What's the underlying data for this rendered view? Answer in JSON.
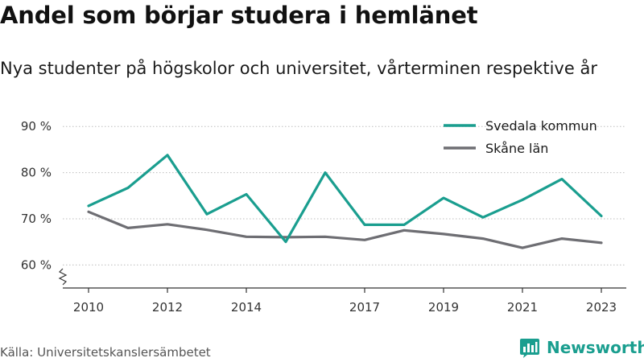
{
  "header": {
    "title": "Andel som börjar studera i hemlänet",
    "subtitle": "Nya studenter på högskolor och universitet, vårterminen respektive år"
  },
  "footer": {
    "source": "Källa: Universitetskanslersämbetet",
    "brand": "Newsworthy",
    "brand_icon": "bar-chart-logo-icon",
    "brand_color": "#1a9e8f"
  },
  "chart_data": {
    "type": "line",
    "title": "Andel som börjar studera i hemlänet",
    "subtitle": "Nya studenter på högskolor och universitet, vårterminen respektive år",
    "xlabel": "",
    "ylabel": "",
    "x": [
      2010,
      2011,
      2012,
      2013,
      2014,
      2015,
      2016,
      2017,
      2018,
      2019,
      2020,
      2021,
      2022,
      2023
    ],
    "x_tick_values": [
      2010,
      2012,
      2014,
      2017,
      2019,
      2021,
      2023
    ],
    "x_tick_labels": [
      "2010",
      "2012",
      "2014",
      "2017",
      "2019",
      "2021",
      "2023"
    ],
    "y_ticks": [
      60,
      70,
      80,
      90
    ],
    "y_tick_labels": [
      "60 %",
      "70 %",
      "80 %",
      "90 %"
    ],
    "ylim": [
      55,
      93
    ],
    "xlim": [
      2009.7,
      2023.3
    ],
    "y_axis_break": true,
    "grid": "horizontal-dotted",
    "legend_position": "top-right",
    "series": [
      {
        "name": "Svedala kommun",
        "color": "#1a9e8f",
        "values": [
          72.8,
          76.7,
          83.8,
          71.0,
          75.3,
          65.0,
          80.0,
          68.7,
          68.7,
          74.5,
          70.3,
          74.1,
          78.6,
          70.6
        ]
      },
      {
        "name": "Skåne län",
        "color": "#6e6e73",
        "values": [
          71.5,
          68.0,
          68.8,
          67.6,
          66.1,
          66.0,
          66.1,
          65.4,
          67.5,
          66.7,
          65.7,
          63.7,
          65.7,
          64.8
        ]
      }
    ]
  }
}
